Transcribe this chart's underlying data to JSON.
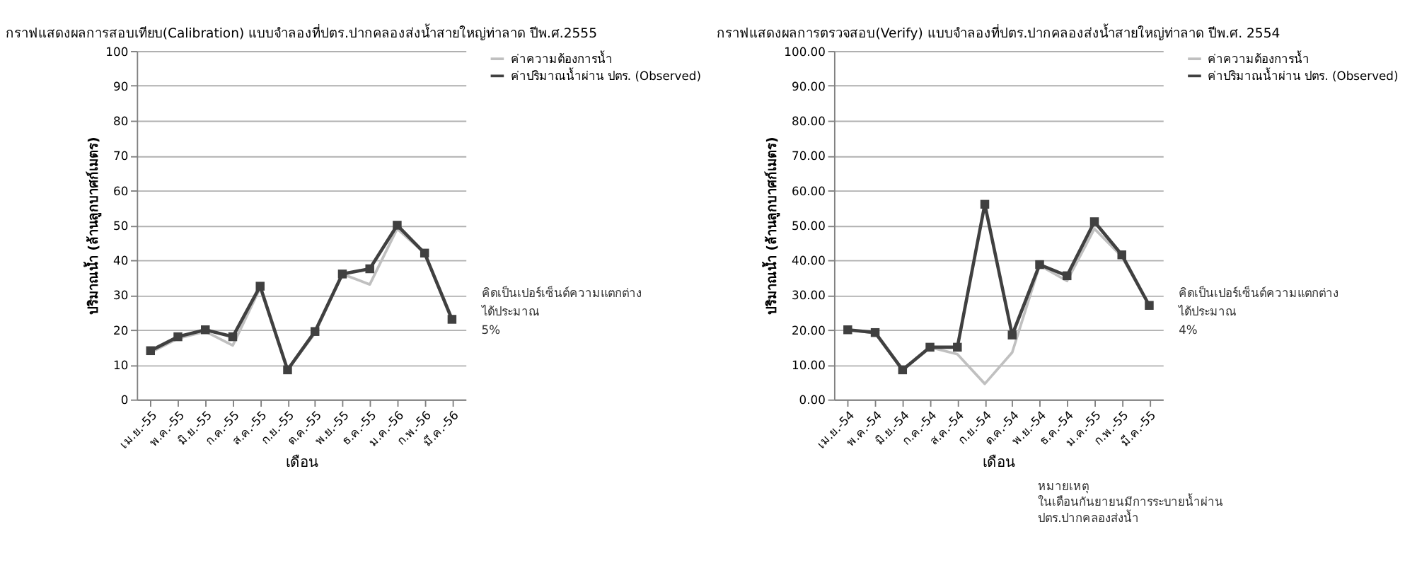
{
  "chart_data": [
    {
      "type": "line",
      "title": "กราฟแสดงผลการสอบเทียบ(Calibration) แบบจำลองที่ปตร.ปากคลองส่งน้ำสายใหญ่ท่าลาด ปีพ.ศ.2555",
      "xlabel": "เดือน",
      "ylabel": "ปริมาณน้ำ (ล้านลูกบาศก์เมตร)",
      "categories": [
        "เม.ย.-55",
        "พ.ค.-55",
        "มิ.ย.-55",
        "ก.ค.-55",
        "ส.ค.-55",
        "ก.ย.-55",
        "ต.ค.-55",
        "พ.ย.-55",
        "ธ.ค.-55",
        "ม.ค.-56",
        "ก.พ.-56",
        "มี.ค.-56"
      ],
      "series": [
        {
          "name": "ค่าความต้องการน้ำ",
          "color": "#c0c0c0",
          "marker": "none",
          "values": [
            13.5,
            17.5,
            19.5,
            15.5,
            32,
            8.5,
            19,
            36,
            33,
            49,
            42,
            22.5
          ]
        },
        {
          "name": "ค่าปริมาณน้ำผ่าน ปตร. (Observed)",
          "color": "#404040",
          "marker": "square",
          "values": [
            14,
            18,
            20,
            18,
            32.5,
            8.5,
            19.5,
            36,
            37.5,
            50,
            42,
            23
          ]
        }
      ],
      "ylim": [
        0,
        100
      ],
      "yticks": [
        0,
        10,
        20,
        30,
        40,
        50,
        60,
        70,
        80,
        90,
        100
      ],
      "grid": "y",
      "legend": "right",
      "annotations": [
        "คิดเป็นเปอร์เซ็นต์ความแตกต่าง ได้ประมาณ 5%"
      ]
    },
    {
      "type": "line",
      "title": "กราฟแสดงผลการตรวจสอบ(Verify) แบบจำลองที่ปตร.ปากคลองส่งน้ำสายใหญ่ท่าลาด ปีพ.ศ. 2554",
      "xlabel": "เดือน",
      "ylabel": "ปริมาณน้ำ (ล้านลูกบาศก์เมตร)",
      "categories": [
        "เม.ย.-54",
        "พ.ค.-54",
        "มิ.ย.-54",
        "ก.ค.-54",
        "ส.ค.-54",
        "ก.ย.-54",
        "ต.ค.-54",
        "พ.ย.-54",
        "ธ.ค.-54",
        "ม.ค.-55",
        "ก.พ.-55",
        "มี.ค.-55"
      ],
      "series": [
        {
          "name": "ค่าความต้องการน้ำ",
          "color": "#c0c0c0",
          "marker": "none",
          "values": [
            20,
            19,
            8.5,
            15,
            13,
            4.5,
            13.5,
            38.5,
            34,
            49,
            41,
            27
          ]
        },
        {
          "name": "ค่าปริมาณน้ำผ่าน ปตร. (Observed)",
          "color": "#404040",
          "marker": "square",
          "values": [
            20,
            19.2,
            8.5,
            15,
            15,
            56,
            18.5,
            38.7,
            35.5,
            51,
            41.5,
            27
          ]
        }
      ],
      "ylim": [
        0,
        100
      ],
      "yticks": [
        {
          "value": 0,
          "label": "0.00"
        },
        {
          "value": 10,
          "label": "10.00"
        },
        {
          "value": 20,
          "label": "20.00"
        },
        {
          "value": 30,
          "label": "30.00"
        },
        {
          "value": 40,
          "label": "40.00"
        },
        {
          "value": 50,
          "label": "50.00"
        },
        {
          "value": 60,
          "label": "60.00"
        },
        {
          "value": 70,
          "label": "70.00"
        },
        {
          "value": 80,
          "label": "80.00"
        },
        {
          "value": 90,
          "label": "90.00"
        },
        {
          "value": 100,
          "label": "100.00"
        }
      ],
      "grid": "y",
      "legend": "right",
      "annotations": [
        "คิดเป็นเปอร์เซ็นต์ความแตกต่าง ได้ประมาณ 4%",
        "หมายเหตุ ในเดือนกันยายนมีการระบายน้ำผ่าน ปตร.ปากคลองส่งน้ำ"
      ]
    }
  ]
}
